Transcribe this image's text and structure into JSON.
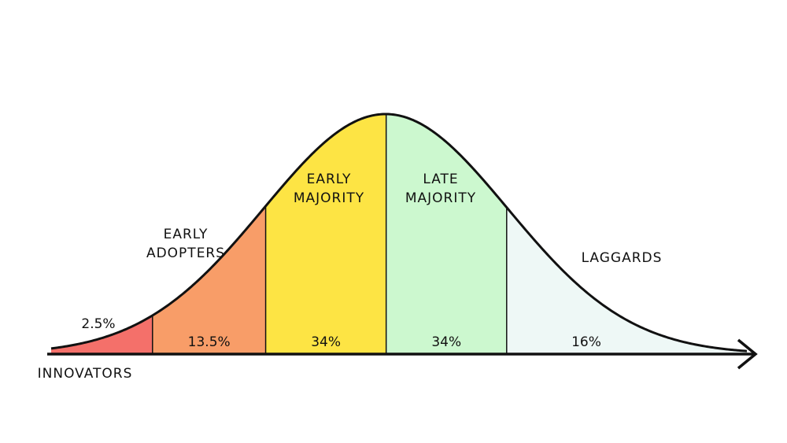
{
  "chart_data": {
    "type": "bell",
    "categories": [
      "INNOVATORS",
      "EARLY ADOPTERS",
      "EARLY MAJORITY",
      "LATE MAJORITY",
      "LAGGARDS"
    ],
    "values": [
      2.5,
      13.5,
      34,
      34,
      16
    ],
    "value_labels": [
      "2.5%",
      "13.5%",
      "34%",
      "34%",
      "16%"
    ],
    "colors": [
      "#f4706a",
      "#f89d68",
      "#fde444",
      "#ccf8cf",
      "#eef8f6"
    ]
  }
}
